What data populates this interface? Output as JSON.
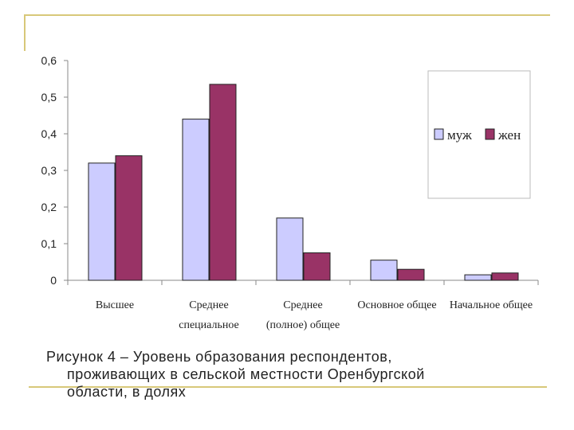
{
  "chart_data": {
    "type": "bar",
    "categories": [
      [
        "Высшее"
      ],
      [
        "Среднее",
        "специальное"
      ],
      [
        "Среднее",
        "(полное) общее"
      ],
      [
        "Основное общее"
      ],
      [
        "Начальное общее"
      ]
    ],
    "series": [
      {
        "name": "муж",
        "values": [
          0.32,
          0.44,
          0.17,
          0.055,
          0.015
        ],
        "color": "#ccccff"
      },
      {
        "name": "жен",
        "values": [
          0.34,
          0.535,
          0.075,
          0.03,
          0.02
        ],
        "color": "#993366"
      }
    ],
    "yticks": [
      "0",
      "0,1",
      "0,2",
      "0,3",
      "0,4",
      "0,5",
      "0,6"
    ],
    "ylim": [
      0,
      0.6
    ],
    "legend_position": "top-right",
    "grid": false
  },
  "caption": {
    "line1": "Рисунок 4 – Уровень образования респондентов,",
    "line2": "проживающих в сельской местности Оренбургской",
    "line3": "области, в долях"
  }
}
